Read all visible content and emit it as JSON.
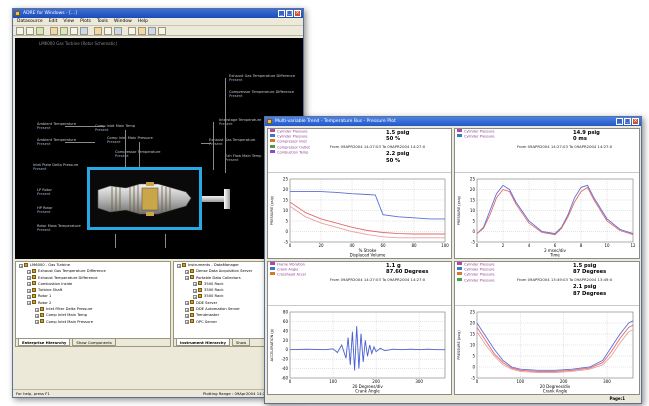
{
  "main_window": {
    "title": "ADRE for Windows - [...]",
    "menus": [
      "Datasource",
      "Edit",
      "View",
      "Plots",
      "Tools",
      "Window",
      "Help"
    ],
    "canvas_title": "LM6000 Gas Turbine (Rotor Schematic)",
    "canvas_labels": [
      {
        "name": "Ambient Temperature",
        "value": "Present"
      },
      {
        "name": "Ambient Temperature",
        "value": "Present"
      },
      {
        "name": "Inlet Plate Delta Pressure",
        "value": "Present"
      },
      {
        "name": "Exhaust Gas Temperature Difference",
        "value": "Present"
      },
      {
        "name": "Compressor Temperature Difference",
        "value": "Present"
      },
      {
        "name": "Comp Inlet Main Temp",
        "value": "Present"
      },
      {
        "name": "Comp Inlet Main Pressure",
        "value": "Present"
      },
      {
        "name": "Compressor Temperature",
        "value": "Present"
      },
      {
        "name": "Interstage Temperature",
        "value": "Present"
      },
      {
        "name": "Exhaust Gas Temperature",
        "value": "Present"
      },
      {
        "name": "Exh Flow Main Temp",
        "value": "Present"
      },
      {
        "name": "LP Rotor",
        "value": "Present"
      },
      {
        "name": "HP Rotor",
        "value": "Present"
      },
      {
        "name": "Rotor Mass Temperature",
        "value": "Present"
      }
    ],
    "tree_left": [
      {
        "label": "LM6000 - Gas Turbine",
        "level": 0
      },
      {
        "label": "Exhaust Gas Temperature Difference",
        "level": 1
      },
      {
        "label": "Exhaust Temperature Difference",
        "level": 1
      },
      {
        "label": "Combustion Inside",
        "level": 1
      },
      {
        "label": "Turbine Shaft",
        "level": 1
      },
      {
        "label": "Rotor 1",
        "level": 1
      },
      {
        "label": "Rotor 2",
        "level": 1
      },
      {
        "label": "Inlet Filter Delta Pressure",
        "level": 2
      },
      {
        "label": "Comp Inlet Main Temp",
        "level": 2
      },
      {
        "label": "Comp Inlet Main Pressure",
        "level": 2
      }
    ],
    "tree_right": [
      {
        "label": "Instruments - DataManager",
        "level": 0
      },
      {
        "label": "Dense Data Acquisition Server",
        "level": 1
      },
      {
        "label": "Portable Data Collectors",
        "level": 1
      },
      {
        "label": "3500 Rack",
        "level": 2
      },
      {
        "label": "3500 Rack",
        "level": 2
      },
      {
        "label": "3500 Rack",
        "level": 2
      },
      {
        "label": "DDE Server",
        "level": 1
      },
      {
        "label": "DDE Automation Server",
        "level": 1
      },
      {
        "label": "Trendmaster",
        "level": 1
      },
      {
        "label": "OPC Server",
        "level": 1
      }
    ],
    "tabs_left": [
      "Enterprise Hierarchy",
      "Show Components"
    ],
    "tabs_right": [
      "Instrument Hierarchy",
      "Show"
    ],
    "status_text": "For help, press F1",
    "status_range": "Plotting Range : 09Apr2004 14:27:03 To ..."
  },
  "trend_window": {
    "title": "Multi-variable Trend - Temperature Bus - Pressure Plot",
    "footer_page": "Page:1",
    "quadrants": [
      {
        "id": "q1",
        "legend": [
          "Cylinder Pressure",
          "Cylinder Pressure",
          "Compressor Inlet",
          "Compressor Outlet",
          "Combustion Temp"
        ],
        "big1": "1.5 psig",
        "big2": "50 %",
        "from": "From 09APR2004 14:27:03 To 09APR2004 14:27:0",
        "big3": "2.2 psig",
        "big4": "50 %",
        "xlabel": "% Stroke",
        "xlabel2": "Displaced Volume",
        "ylabel": "PRESSURE (psig)"
      },
      {
        "id": "q2",
        "legend": [
          "Cylinder Pressure",
          "Cylinder Pressure"
        ],
        "big1": "14.9 psig",
        "big2": "0 ms",
        "from": "From 09APR2004 14:27:03 To 09APR2004 14:27:0",
        "xlabel": "2 msec/div",
        "xlabel2": "Time",
        "ylabel": "PRESSURE (psig)"
      },
      {
        "id": "q3",
        "legend": [
          "Frame Vibration",
          "Crank Angle",
          "Crosshead Accel"
        ],
        "big1": "1.1 g",
        "big2": "87.60 Degrees",
        "from": "From 09APR2004 14:27:03 To 09APR2004 14:27:0",
        "xlabel": "20 Degrees/div",
        "xlabel2": "Crank Angle",
        "ylabel": "ACCELERATION (g)"
      },
      {
        "id": "q4",
        "legend": [
          "Cylinder Pressure",
          "Cylinder Pressure",
          "Cylinder Pressure",
          "Cylinder Pressure"
        ],
        "big1": "1.5 psig",
        "big2": "87 Degrees",
        "big3": "2.1 psig",
        "big4": "87 Degrees",
        "from": "From 09APR2004 13:49:03 To 09APR2004 13:49:0",
        "xlabel": "20 Degrees/div",
        "xlabel2": "Crank Angle",
        "ylabel": "PRESSURE (psig)"
      }
    ]
  },
  "chart_data": [
    {
      "type": "line",
      "title": "",
      "xlabel": "Displaced Volume",
      "ylabel": "PRESSURE (psig)",
      "xlim": [
        0,
        100
      ],
      "ylim": [
        -5,
        25
      ],
      "x_ticks": [
        0,
        20,
        40,
        60,
        80,
        100
      ],
      "y_ticks": [
        -5,
        0,
        5,
        10,
        15,
        20,
        25
      ],
      "series": [
        {
          "color": "#5b6fd6",
          "x": [
            0,
            10,
            20,
            30,
            40,
            50,
            55,
            60,
            70,
            80,
            90,
            100
          ],
          "y": [
            19,
            19,
            19,
            18.6,
            18,
            17.6,
            17.4,
            8,
            7,
            6.5,
            6,
            6
          ]
        },
        {
          "color": "#e46a6a",
          "x": [
            0,
            10,
            20,
            30,
            40,
            50,
            60,
            70,
            80,
            90,
            100
          ],
          "y": [
            14,
            9,
            6,
            4,
            2,
            0.5,
            -0.5,
            -1,
            -1.2,
            -1.2,
            -1.2
          ]
        },
        {
          "color": "#e8a2a2",
          "x": [
            0,
            10,
            20,
            30,
            40,
            50,
            60,
            70,
            80,
            90,
            100
          ],
          "y": [
            12,
            7,
            4,
            2,
            0,
            -1.5,
            -2.5,
            -3,
            -3,
            -3,
            -3
          ]
        }
      ]
    },
    {
      "type": "line",
      "title": "",
      "xlabel": "Time",
      "ylabel": "PRESSURE (psig)",
      "xlim": [
        0,
        12
      ],
      "ylim": [
        -5,
        25
      ],
      "x_ticks": [
        0,
        2,
        4,
        6,
        8,
        10,
        12
      ],
      "y_ticks": [
        -5,
        0,
        5,
        10,
        15,
        20,
        25
      ],
      "series": [
        {
          "color": "#5b6fd6",
          "x": [
            0,
            0.5,
            1,
            1.5,
            2,
            2.5,
            3,
            4,
            5,
            6,
            6.5,
            7,
            7.5,
            8,
            8.5,
            9,
            10,
            11,
            12
          ],
          "y": [
            -1,
            2,
            10,
            18,
            22,
            20,
            14,
            5,
            0,
            -1,
            2,
            8,
            16,
            21,
            22,
            16,
            6,
            1,
            -1
          ]
        },
        {
          "color": "#e46a6a",
          "x": [
            0,
            0.5,
            1,
            1.5,
            2,
            2.5,
            3,
            4,
            5,
            6,
            6.5,
            7,
            7.5,
            8,
            8.5,
            9,
            10,
            11,
            12
          ],
          "y": [
            -1,
            1.5,
            8,
            16,
            20,
            19,
            13,
            4,
            -0.5,
            -1.5,
            1.5,
            7,
            14,
            19,
            21,
            15,
            5,
            0.5,
            -1.5
          ]
        }
      ]
    },
    {
      "type": "line",
      "title": "",
      "xlabel": "Crank Angle",
      "ylabel": "ACCELERATION (g)",
      "xlim": [
        0,
        360
      ],
      "ylim": [
        -60,
        80
      ],
      "x_ticks": [
        0,
        100,
        200,
        300
      ],
      "y_ticks": [
        -60,
        -40,
        -20,
        0,
        20,
        40,
        60,
        80
      ],
      "series": [
        {
          "color": "#4a5fd0",
          "x": [
            0,
            40,
            80,
            100,
            110,
            120,
            130,
            135,
            140,
            145,
            150,
            155,
            160,
            165,
            170,
            175,
            180,
            185,
            190,
            195,
            200,
            210,
            220,
            240,
            260,
            280,
            300,
            320,
            340,
            360
          ],
          "y": [
            0,
            1,
            0,
            2,
            -6,
            10,
            -18,
            26,
            -32,
            38,
            -44,
            50,
            -40,
            34,
            -26,
            20,
            -14,
            10,
            -8,
            6,
            -4,
            3,
            -2,
            1,
            0,
            1,
            0,
            1,
            0,
            0
          ]
        }
      ]
    },
    {
      "type": "line",
      "title": "",
      "xlabel": "Crank Angle",
      "ylabel": "PRESSURE (psig)",
      "xlim": [
        0,
        360
      ],
      "ylim": [
        -5,
        25
      ],
      "x_ticks": [
        0,
        100,
        200,
        300
      ],
      "y_ticks": [
        -5,
        0,
        5,
        10,
        15,
        20,
        25
      ],
      "series": [
        {
          "color": "#5b6fd6",
          "x": [
            0,
            20,
            40,
            60,
            80,
            100,
            140,
            180,
            220,
            260,
            290,
            310,
            330,
            350,
            360
          ],
          "y": [
            20,
            14,
            8,
            3,
            0,
            -1,
            -1.5,
            -1.5,
            -1,
            0,
            3,
            9,
            15,
            20,
            21
          ]
        },
        {
          "color": "#e46a6a",
          "x": [
            0,
            20,
            40,
            60,
            80,
            100,
            140,
            180,
            220,
            260,
            290,
            310,
            330,
            350,
            360
          ],
          "y": [
            18,
            12,
            6,
            2,
            -0.5,
            -1.5,
            -2,
            -2,
            -1.5,
            -0.5,
            2,
            7,
            13,
            18,
            19
          ]
        },
        {
          "color": "#e8a2a2",
          "x": [
            0,
            20,
            40,
            60,
            80,
            100,
            140,
            180,
            220,
            260,
            290,
            310,
            330,
            350,
            360
          ],
          "y": [
            16,
            10,
            5,
            1,
            -1,
            -2,
            -2.5,
            -2.5,
            -2,
            -1,
            1,
            5,
            11,
            16,
            17
          ]
        }
      ]
    }
  ]
}
